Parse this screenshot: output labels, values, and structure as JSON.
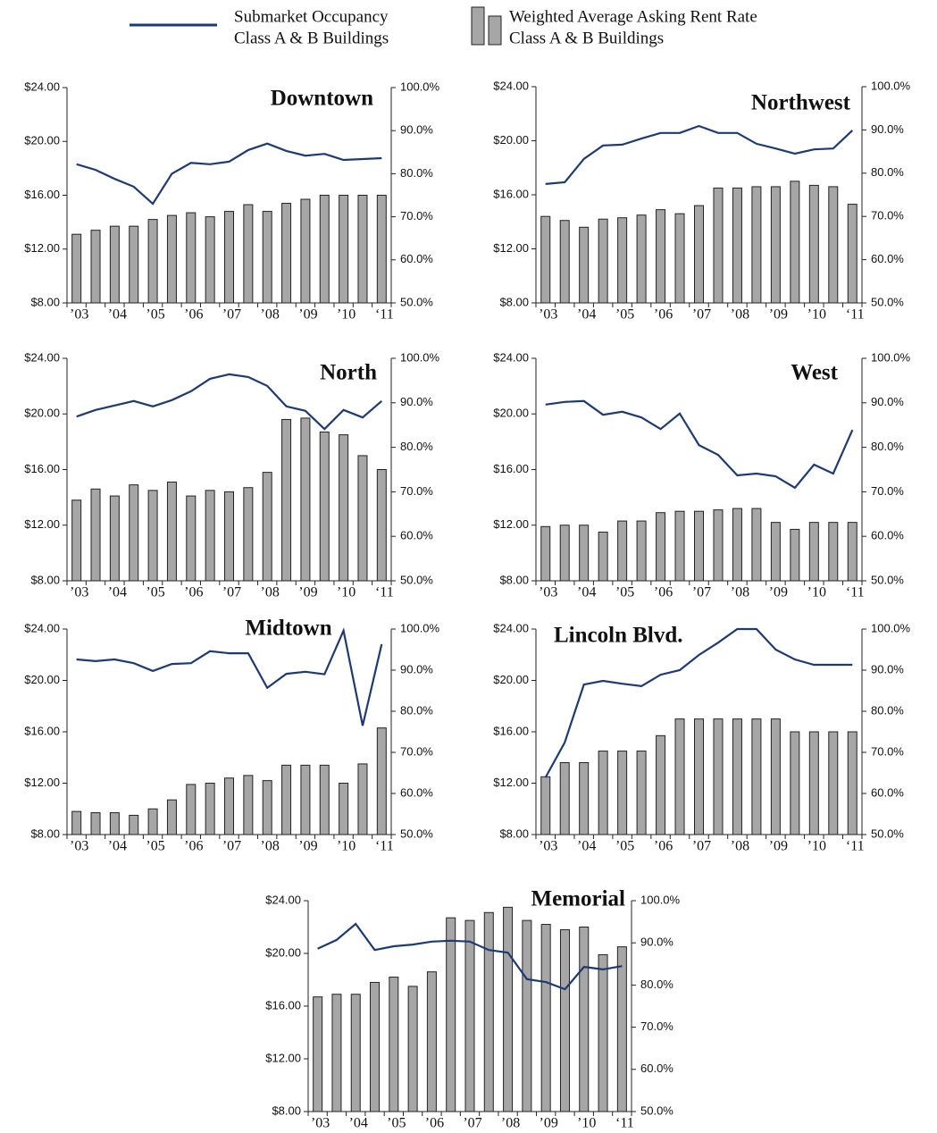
{
  "legend": [
    {
      "type": "line",
      "color": "#1f3a73",
      "label": [
        "Submarket Occupancy",
        "Class A & B Buildings"
      ]
    },
    {
      "type": "bar",
      "color": "#a6a6a6",
      "label": [
        "Weighted Average Asking Rent Rate",
        "Class A & B Buildings"
      ]
    }
  ],
  "chart_data": [
    {
      "type": "bar",
      "title": "Downtown",
      "categories": [
        "’03",
        null,
        "’04",
        null,
        "’05",
        null,
        "’06",
        null,
        "’07",
        null,
        "’08",
        null,
        "’09",
        null,
        "’10",
        null,
        "‘11"
      ],
      "series": [
        {
          "type": "bar",
          "color": "#a6a6a6",
          "values": [
            13.1,
            13.4,
            13.7,
            13.7,
            14.2,
            14.5,
            14.7,
            14.4,
            14.8,
            15.3,
            14.8,
            15.4,
            15.7,
            16.0,
            16.0,
            16.0,
            16.0
          ]
        },
        {
          "type": "line",
          "axis": "y2",
          "color": "#1f3a73",
          "values": [
            82.2,
            80.9,
            78.8,
            77.0,
            73.0,
            80.0,
            82.5,
            82.2,
            82.8,
            85.5,
            87.0,
            85.3,
            84.2,
            84.6,
            83.2,
            83.4,
            83.6
          ]
        }
      ],
      "ylim": [
        8,
        24
      ],
      "yticks": [
        {
          "value": 8,
          "label": "$8.00"
        },
        {
          "value": 12,
          "label": "$12.00"
        },
        {
          "value": 16,
          "label": "$16.00"
        },
        {
          "value": 20,
          "label": "$20.00"
        },
        {
          "value": 24,
          "label": "$24.00"
        }
      ],
      "y2lim": [
        50,
        100
      ],
      "y2ticks": [
        {
          "value": 50,
          "label": "50.0%"
        },
        {
          "value": 60,
          "label": "60.0%"
        },
        {
          "value": 70,
          "label": "70.0%"
        },
        {
          "value": 80,
          "label": "80.0%"
        },
        {
          "value": 90,
          "label": "90.0%"
        },
        {
          "value": 100,
          "label": "100.0%"
        }
      ]
    },
    {
      "type": "bar",
      "title": "Northwest",
      "categories": [
        "’03",
        null,
        "’04",
        null,
        "’05",
        null,
        "’06",
        null,
        "’07",
        null,
        "’08",
        null,
        "’09",
        null,
        "’10",
        null,
        "‘11"
      ],
      "series": [
        {
          "type": "bar",
          "color": "#a6a6a6",
          "values": [
            14.4,
            14.1,
            13.6,
            14.2,
            14.3,
            14.5,
            14.9,
            14.6,
            15.2,
            16.5,
            16.5,
            16.6,
            16.6,
            17.0,
            16.7,
            16.6,
            15.3
          ]
        },
        {
          "type": "line",
          "axis": "y2",
          "color": "#1f3a73",
          "values": [
            77.5,
            77.9,
            83.3,
            86.4,
            86.6,
            88.0,
            89.3,
            89.3,
            90.9,
            89.3,
            89.3,
            86.8,
            85.7,
            84.5,
            85.5,
            85.7,
            89.9
          ]
        }
      ],
      "ylim": [
        8,
        24
      ],
      "yticks": [
        {
          "value": 8,
          "label": "$8.00"
        },
        {
          "value": 12,
          "label": "$12.00"
        },
        {
          "value": 16,
          "label": "$16.00"
        },
        {
          "value": 20,
          "label": "$20.00"
        },
        {
          "value": 24,
          "label": "$24.00"
        }
      ],
      "y2lim": [
        50,
        100
      ],
      "y2ticks": [
        {
          "value": 50,
          "label": "50.0%"
        },
        {
          "value": 60,
          "label": "60.0%"
        },
        {
          "value": 70,
          "label": "70.0%"
        },
        {
          "value": 80,
          "label": "80.0%"
        },
        {
          "value": 90,
          "label": "90.0%"
        },
        {
          "value": 100,
          "label": "100.0%"
        }
      ]
    },
    {
      "type": "bar",
      "title": "North",
      "categories": [
        "’03",
        null,
        "’04",
        null,
        "’05",
        null,
        "’06",
        null,
        "’07",
        null,
        "’08",
        null,
        "’09",
        null,
        "’10",
        null,
        "‘11"
      ],
      "series": [
        {
          "type": "bar",
          "color": "#a6a6a6",
          "values": [
            13.8,
            14.6,
            14.1,
            14.9,
            14.5,
            15.1,
            14.1,
            14.5,
            14.4,
            14.7,
            15.8,
            19.6,
            19.7,
            18.7,
            18.5,
            17.0,
            16.0
          ]
        },
        {
          "type": "line",
          "axis": "y2",
          "color": "#1f3a73",
          "values": [
            86.9,
            88.4,
            89.4,
            90.4,
            89.2,
            90.6,
            92.6,
            95.4,
            96.4,
            95.8,
            93.8,
            89.2,
            88.2,
            84.1,
            88.4,
            86.7,
            90.4
          ]
        }
      ],
      "ylim": [
        8,
        24
      ],
      "yticks": [
        {
          "value": 8,
          "label": "$8.00"
        },
        {
          "value": 12,
          "label": "$12.00"
        },
        {
          "value": 16,
          "label": "$16.00"
        },
        {
          "value": 20,
          "label": "$20.00"
        },
        {
          "value": 24,
          "label": "$24.00"
        }
      ],
      "y2lim": [
        50,
        100
      ],
      "y2ticks": [
        {
          "value": 50,
          "label": "50.0%"
        },
        {
          "value": 60,
          "label": "60.0%"
        },
        {
          "value": 70,
          "label": "70.0%"
        },
        {
          "value": 80,
          "label": "80.0%"
        },
        {
          "value": 90,
          "label": "90.0%"
        },
        {
          "value": 100,
          "label": "100.0%"
        }
      ]
    },
    {
      "type": "bar",
      "title": "West",
      "categories": [
        "’03",
        null,
        "’04",
        null,
        "’05",
        null,
        "’06",
        null,
        "’07",
        null,
        "’08",
        null,
        "’09",
        null,
        "’10",
        null,
        "‘11"
      ],
      "series": [
        {
          "type": "bar",
          "color": "#a6a6a6",
          "values": [
            11.9,
            12.0,
            12.0,
            11.5,
            12.3,
            12.3,
            12.9,
            13.0,
            13.0,
            13.1,
            13.2,
            13.2,
            12.2,
            11.7,
            12.2,
            12.2,
            12.2
          ]
        },
        {
          "type": "line",
          "axis": "y2",
          "color": "#1f3a73",
          "values": [
            89.6,
            90.2,
            90.4,
            87.3,
            88.0,
            86.7,
            84.1,
            87.6,
            80.5,
            78.3,
            73.7,
            74.1,
            73.5,
            70.9,
            76.1,
            74.1,
            83.9
          ]
        }
      ],
      "ylim": [
        8,
        24
      ],
      "yticks": [
        {
          "value": 8,
          "label": "$8.00"
        },
        {
          "value": 12,
          "label": "$12.00"
        },
        {
          "value": 16,
          "label": "$16.00"
        },
        {
          "value": 20,
          "label": "$20.00"
        },
        {
          "value": 24,
          "label": "$24.00"
        }
      ],
      "y2lim": [
        50,
        100
      ],
      "y2ticks": [
        {
          "value": 50,
          "label": "50.0%"
        },
        {
          "value": 60,
          "label": "60.0%"
        },
        {
          "value": 70,
          "label": "70.0%"
        },
        {
          "value": 80,
          "label": "80.0%"
        },
        {
          "value": 90,
          "label": "90.0%"
        },
        {
          "value": 100,
          "label": "100.0%"
        }
      ]
    },
    {
      "type": "bar",
      "title": "Midtown",
      "categories": [
        "’03",
        null,
        "’04",
        null,
        "’05",
        null,
        "’06",
        null,
        "’07",
        null,
        "’08",
        null,
        "’09",
        null,
        "’10",
        null,
        "‘11"
      ],
      "series": [
        {
          "type": "bar",
          "color": "#a6a6a6",
          "values": [
            9.8,
            9.7,
            9.7,
            9.5,
            10.0,
            10.7,
            11.9,
            12.0,
            12.4,
            12.6,
            12.2,
            13.4,
            13.4,
            13.4,
            12.0,
            13.5,
            16.3
          ]
        },
        {
          "type": "line",
          "axis": "y2",
          "color": "#1f3a73",
          "values": [
            92.6,
            92.2,
            92.6,
            91.7,
            89.8,
            91.5,
            91.7,
            94.6,
            94.1,
            94.1,
            85.7,
            89.1,
            89.6,
            89.0,
            99.6,
            76.5,
            96.3
          ]
        }
      ],
      "ylim": [
        8,
        24
      ],
      "yticks": [
        {
          "value": 8,
          "label": "$8.00"
        },
        {
          "value": 12,
          "label": "$12.00"
        },
        {
          "value": 16,
          "label": "$16.00"
        },
        {
          "value": 20,
          "label": "$20.00"
        },
        {
          "value": 24,
          "label": "$24.00"
        }
      ],
      "y2lim": [
        50,
        100
      ],
      "y2ticks": [
        {
          "value": 50,
          "label": "50.0%"
        },
        {
          "value": 60,
          "label": "60.0%"
        },
        {
          "value": 70,
          "label": "70.0%"
        },
        {
          "value": 80,
          "label": "80.0%"
        },
        {
          "value": 90,
          "label": "90.0%"
        },
        {
          "value": 100,
          "label": "100.0%"
        }
      ]
    },
    {
      "type": "bar",
      "title": "Lincoln Blvd.",
      "categories": [
        "’03",
        null,
        "’04",
        null,
        "’05",
        null,
        "’06",
        null,
        "’07",
        null,
        "’08",
        null,
        "’09",
        null,
        "’10",
        null,
        "‘11"
      ],
      "series": [
        {
          "type": "bar",
          "color": "#a6a6a6",
          "values": [
            12.5,
            13.6,
            13.6,
            14.5,
            14.5,
            14.5,
            15.7,
            17.0,
            17.0,
            17.0,
            17.0,
            17.0,
            17.0,
            16.0,
            16.0,
            16.0,
            16.0
          ]
        },
        {
          "type": "line",
          "axis": "y2",
          "color": "#1f3a73",
          "values": [
            63.9,
            72.4,
            86.5,
            87.4,
            86.7,
            86.1,
            88.9,
            90.0,
            93.7,
            96.7,
            100,
            100,
            95.0,
            92.6,
            91.3,
            91.3,
            91.3
          ]
        }
      ],
      "ylim": [
        8,
        24
      ],
      "yticks": [
        {
          "value": 8,
          "label": "$8.00"
        },
        {
          "value": 12,
          "label": "$12.00"
        },
        {
          "value": 16,
          "label": "$16.00"
        },
        {
          "value": 20,
          "label": "$20.00"
        },
        {
          "value": 24,
          "label": "$24.00"
        }
      ],
      "y2lim": [
        50,
        100
      ],
      "y2ticks": [
        {
          "value": 50,
          "label": "50.0%"
        },
        {
          "value": 60,
          "label": "60.0%"
        },
        {
          "value": 70,
          "label": "70.0%"
        },
        {
          "value": 80,
          "label": "80.0%"
        },
        {
          "value": 90,
          "label": "90.0%"
        },
        {
          "value": 100,
          "label": "100.0%"
        }
      ]
    },
    {
      "type": "bar",
      "title": "Memorial",
      "categories": [
        "’03",
        null,
        "’04",
        null,
        "’05",
        null,
        "’06",
        null,
        "’07",
        null,
        "’08",
        null,
        "’09",
        null,
        "’10",
        null,
        "‘11"
      ],
      "series": [
        {
          "type": "bar",
          "color": "#a6a6a6",
          "values": [
            16.7,
            16.9,
            16.9,
            17.8,
            18.2,
            17.5,
            18.6,
            22.7,
            22.5,
            23.1,
            23.5,
            22.5,
            22.2,
            21.8,
            22.0,
            19.9,
            20.5
          ]
        },
        {
          "type": "line",
          "axis": "y2",
          "color": "#1f3a73",
          "values": [
            88.6,
            90.7,
            94.5,
            88.3,
            89.2,
            89.6,
            90.3,
            90.5,
            90.3,
            88.3,
            87.7,
            81.4,
            80.7,
            79.0,
            84.3,
            83.7,
            84.5
          ]
        }
      ],
      "ylim": [
        8,
        24
      ],
      "yticks": [
        {
          "value": 8,
          "label": "$8.00"
        },
        {
          "value": 12,
          "label": "$12.00"
        },
        {
          "value": 16,
          "label": "$16.00"
        },
        {
          "value": 20,
          "label": "$20.00"
        },
        {
          "value": 24,
          "label": "$24.00"
        }
      ],
      "y2lim": [
        50,
        100
      ],
      "y2ticks": [
        {
          "value": 50,
          "label": "50.0%"
        },
        {
          "value": 60,
          "label": "60.0%"
        },
        {
          "value": 70,
          "label": "70.0%"
        },
        {
          "value": 80,
          "label": "80.0%"
        },
        {
          "value": 90,
          "label": "90.0%"
        },
        {
          "value": 100,
          "label": "100.0%"
        }
      ]
    }
  ]
}
